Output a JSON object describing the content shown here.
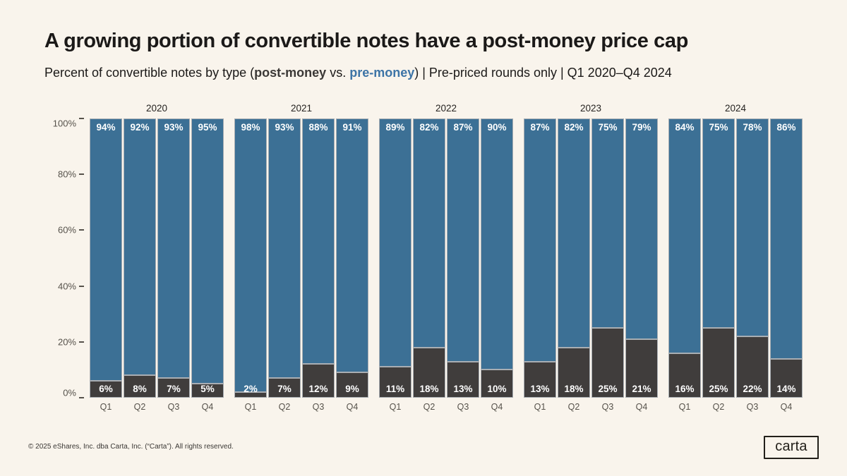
{
  "title": "A growing portion of convertible notes have a post-money price cap",
  "subtitle": {
    "prefix": "Percent of convertible notes by type (",
    "post_money_label": "post-money",
    "vs": " vs. ",
    "pre_money_label": "pre-money",
    "suffix": ") | Pre-priced rounds only | Q1 2020–Q4 2024"
  },
  "footer": {
    "copyright": "© 2025 eShares, Inc. dba Carta, Inc. (“Carta”). All rights reserved.",
    "logo_text": "carta"
  },
  "colors": {
    "background": "#f9f4ec",
    "pre_money_blue": "#3c7095",
    "post_money_dark": "#403d3c",
    "accent_text_blue": "#3d74a6",
    "bar_edge": "#a9aeb3",
    "axis_text": "#56524b",
    "title_text": "#1b1918",
    "value_label_text": "#ffffff"
  },
  "chart_data": {
    "type": "bar",
    "stacked": true,
    "unit": "percent",
    "ylim": [
      0,
      100
    ],
    "y_tick_values": [
      0,
      20,
      40,
      60,
      80,
      100
    ],
    "y_tick_suffix": "%",
    "grid": false,
    "legend": "inline-in-subtitle",
    "quarter_labels": [
      "Q1",
      "Q2",
      "Q3",
      "Q4"
    ],
    "series": [
      {
        "name": "pre-money",
        "position": "top-segment",
        "color": "#3c7095",
        "label_position": "top-of-bar"
      },
      {
        "name": "post-money",
        "position": "bottom-segment",
        "color": "#403d3c",
        "label_position": "bottom-of-bar"
      }
    ],
    "groups": [
      {
        "year": "2020",
        "pre_money_pct": [
          94,
          92,
          93,
          95
        ],
        "post_money_pct": [
          6,
          8,
          7,
          5
        ]
      },
      {
        "year": "2021",
        "pre_money_pct": [
          98,
          93,
          88,
          91
        ],
        "post_money_pct": [
          2,
          7,
          12,
          9
        ]
      },
      {
        "year": "2022",
        "pre_money_pct": [
          89,
          82,
          87,
          90
        ],
        "post_money_pct": [
          11,
          18,
          13,
          10
        ]
      },
      {
        "year": "2023",
        "pre_money_pct": [
          87,
          82,
          75,
          79
        ],
        "post_money_pct": [
          13,
          18,
          25,
          21
        ]
      },
      {
        "year": "2024",
        "pre_money_pct": [
          84,
          75,
          78,
          86
        ],
        "post_money_pct": [
          16,
          25,
          22,
          14
        ]
      }
    ]
  }
}
